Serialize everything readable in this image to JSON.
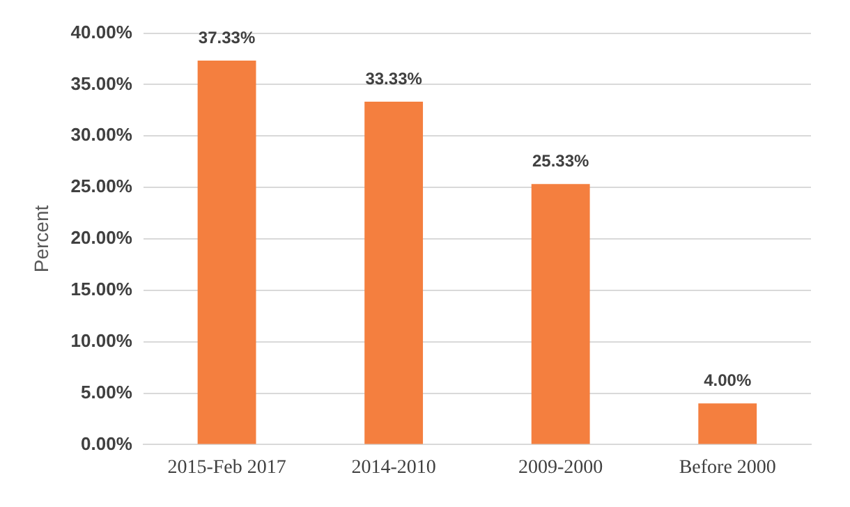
{
  "chart_data": {
    "type": "bar",
    "ylabel": "Percent",
    "categories": [
      "2015-Feb 2017",
      "2014-2010",
      "2009-2000",
      "Before 2000"
    ],
    "values": [
      37.33,
      33.33,
      25.33,
      4.0
    ],
    "value_labels": [
      "37.33%",
      "33.33%",
      "25.33%",
      "4.00%"
    ],
    "color": "#f47f3f",
    "ylim": [
      0,
      40
    ],
    "yticks": [
      {
        "value": 0,
        "label": "0.00%"
      },
      {
        "value": 5,
        "label": "5.00%"
      },
      {
        "value": 10,
        "label": "10.00%"
      },
      {
        "value": 15,
        "label": "15.00%"
      },
      {
        "value": 20,
        "label": "20.00%"
      },
      {
        "value": 25,
        "label": "25.00%"
      },
      {
        "value": 30,
        "label": "30.00%"
      },
      {
        "value": 35,
        "label": "35.00%"
      },
      {
        "value": 40,
        "label": "40.00%"
      }
    ],
    "grid": "y"
  }
}
